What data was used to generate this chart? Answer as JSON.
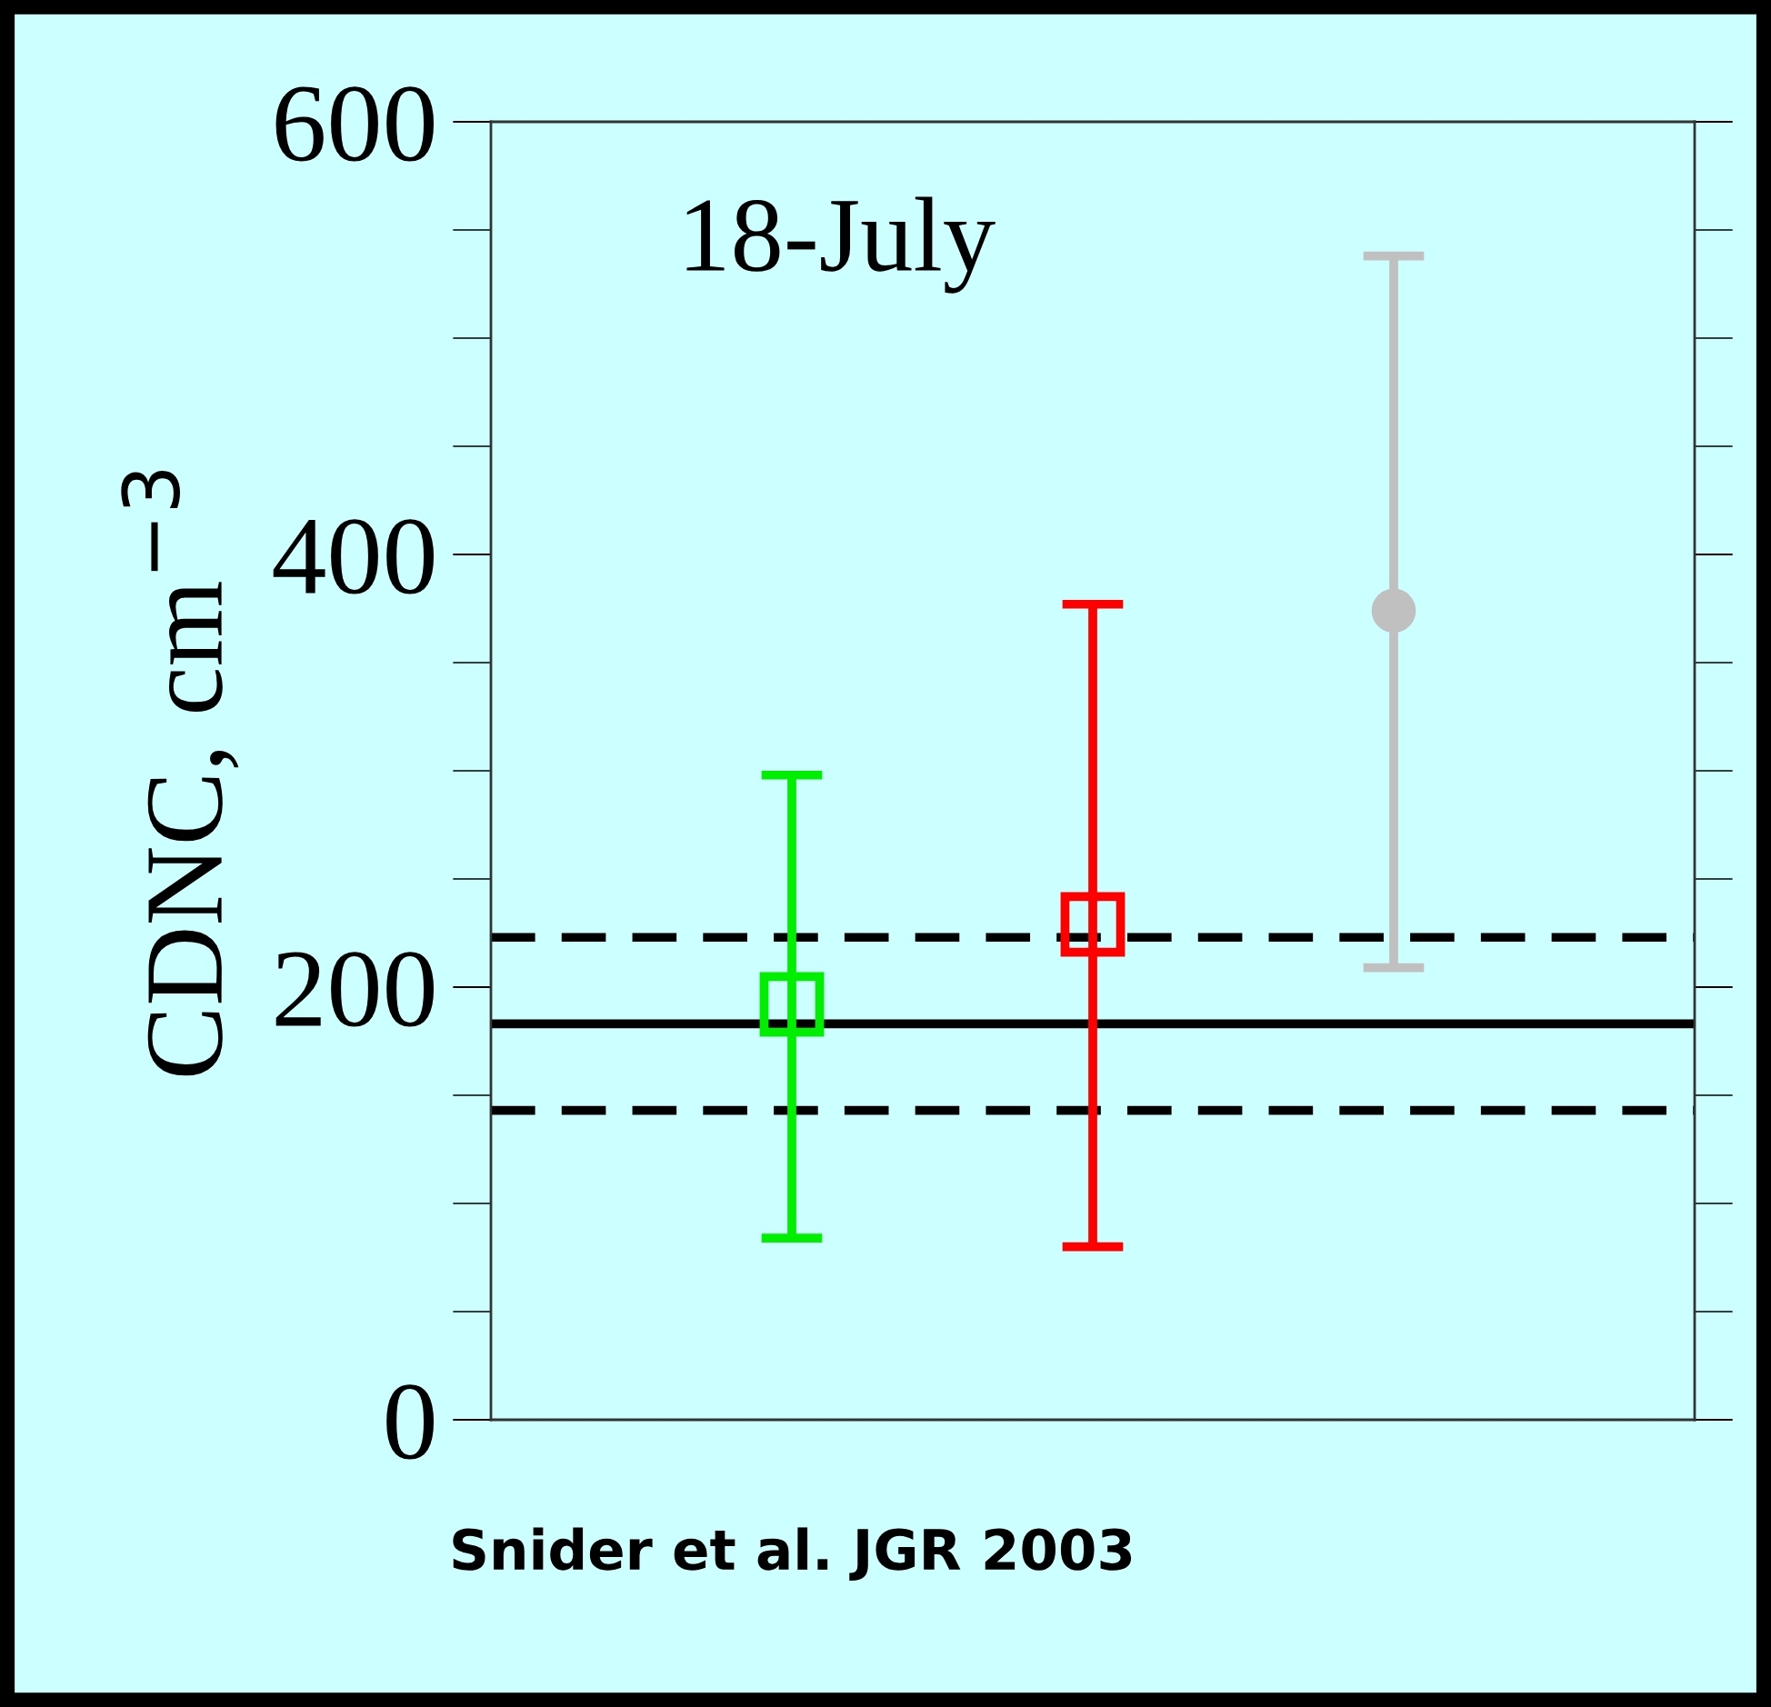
{
  "chart_data": {
    "type": "scatter",
    "ylabel": "CDNC, cm$^{−3}$",
    "categories": [
      null,
      null,
      null
    ],
    "ylim": [
      0,
      600
    ],
    "yticks": [
      0,
      200,
      400,
      600
    ],
    "series": [
      {
        "color": "#00ee00",
        "marker": "square",
        "values": [
          192,
          null,
          null
        ],
        "errors": [
          [
            84,
            298
          ],
          null,
          null
        ]
      },
      {
        "color": "#ff0000",
        "marker": "square",
        "values": [
          null,
          229,
          null
        ],
        "errors": [
          null,
          [
            80,
            377
          ],
          null
        ]
      },
      {
        "color": "#c0c0c0",
        "marker": "circle",
        "values": [
          null,
          null,
          374
        ],
        "errors": [
          null,
          null,
          [
            209,
            538
          ]
        ]
      }
    ],
    "ref_lines": [
      {
        "axis": "y",
        "value": 183,
        "color": "#000000",
        "line_style": "solid"
      },
      {
        "axis": "y",
        "value": 223,
        "color": "#000000",
        "line_style": "dashed"
      },
      {
        "axis": "y",
        "value": 143,
        "color": "#000000",
        "line_style": "dashed"
      }
    ],
    "annotations": [
      "18-July",
      "Snider et al. JGR 2003"
    ],
    "tick_labels": "y",
    "grid": false,
    "legend": false
  }
}
